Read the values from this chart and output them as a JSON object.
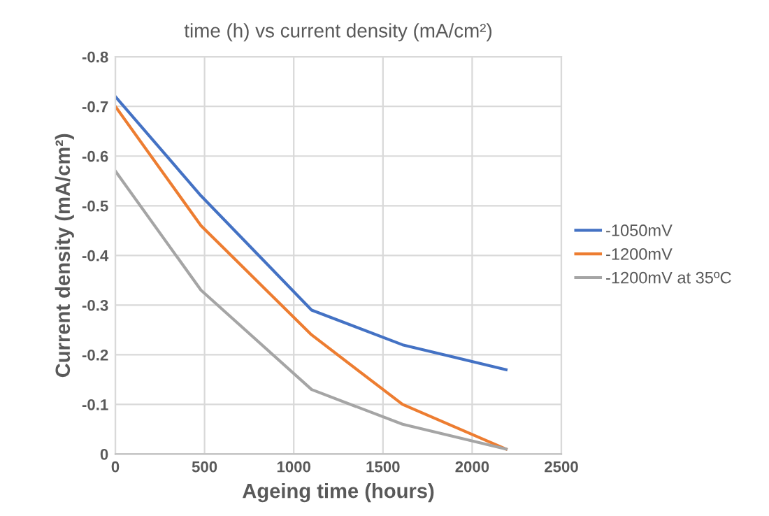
{
  "chart_data": {
    "type": "line",
    "title": "time (h) vs current density (mA/cm²)",
    "xlabel": "Ageing time (hours)",
    "ylabel": "Current density (mA/cm²)",
    "x": [
      0,
      480,
      1100,
      1610,
      2190
    ],
    "series": [
      {
        "name": "-1050mV",
        "color": "#4472c4",
        "values": [
          -0.72,
          -0.52,
          -0.29,
          -0.22,
          -0.17
        ]
      },
      {
        "name": "-1200mV",
        "color": "#ed7d31",
        "values": [
          -0.7,
          -0.46,
          -0.24,
          -0.1,
          -0.01
        ]
      },
      {
        "name": "-1200mV at 35ºC",
        "color": "#a5a5a5",
        "values": [
          -0.57,
          -0.33,
          -0.13,
          -0.06,
          -0.01
        ]
      }
    ],
    "xlim": [
      0,
      2500
    ],
    "xticks": [
      0,
      500,
      1000,
      1500,
      2000,
      2500
    ],
    "ylim": [
      0,
      -0.8
    ],
    "yticks": [
      0,
      -0.1,
      -0.2,
      -0.3,
      -0.4,
      -0.5,
      -0.6,
      -0.7,
      -0.8
    ],
    "grid": true,
    "legend": "right",
    "marker": "none",
    "line_style": "solid"
  }
}
